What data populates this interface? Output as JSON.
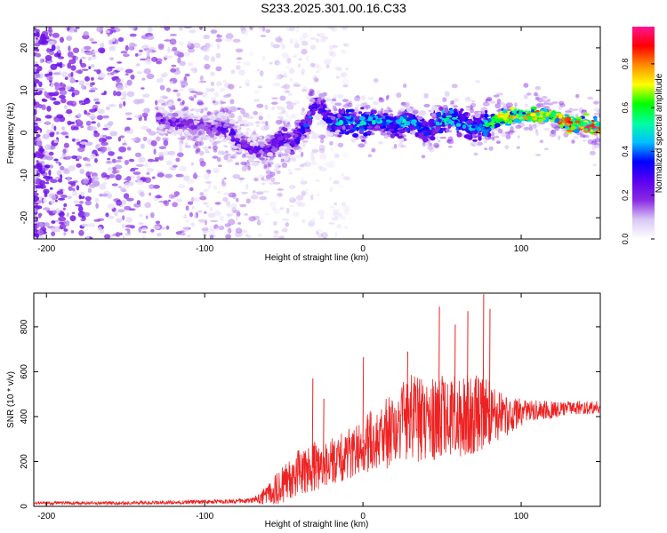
{
  "title": "S233.2025.301.00.16.C33",
  "colors": {
    "snr_line": "#ee2222",
    "axis": "#000000",
    "background": "#ffffff",
    "colorbar_stops": [
      "#ffffff",
      "#d9c9f5",
      "#8a2be2",
      "#5a00f0",
      "#0000ff",
      "#00bfff",
      "#00ffa0",
      "#00ff00",
      "#ffff00",
      "#ff8c00",
      "#ff0000",
      "#ff1493"
    ]
  },
  "chart_data": [
    {
      "type": "heatmap",
      "title": "S233.2025.301.00.16.C33",
      "xlabel": "Height of straight line (km)",
      "ylabel": "Frequency (Hz)",
      "xlim": [
        -208,
        150
      ],
      "ylim": [
        -25,
        25
      ],
      "x_ticks": [
        -200,
        -100,
        0,
        100
      ],
      "x_tick_labels": [
        "-200",
        "-100",
        "0",
        "100"
      ],
      "y_ticks": [
        -20,
        -10,
        0,
        10,
        20
      ],
      "y_tick_labels": [
        "-20",
        "-10",
        "0",
        "10",
        "20"
      ],
      "colorbar": {
        "label": "Normalized spectral amplitude",
        "range": [
          0,
          0.97
        ],
        "ticks": [
          0,
          0.2,
          0.4,
          0.6,
          0.8
        ],
        "tick_labels": [
          "0.0",
          "0.2",
          "0.4",
          "0.6",
          "0.8"
        ]
      },
      "ridge": {
        "x": [
          -130,
          -110,
          -95,
          -85,
          -80,
          -70,
          -60,
          -50,
          -45,
          -40,
          -35,
          -30,
          -25,
          -20,
          -10,
          0,
          10,
          20,
          30,
          40,
          45,
          50,
          60,
          70,
          80,
          90,
          100,
          110,
          120,
          130,
          140,
          150
        ],
        "frequency": [
          3,
          2,
          1,
          1,
          -2,
          -4,
          -4,
          -1,
          -3,
          0,
          2,
          7,
          5,
          2,
          3,
          2,
          3,
          2,
          3,
          0,
          2,
          3,
          3,
          1,
          2,
          4,
          4,
          4,
          4,
          2,
          2,
          1
        ],
        "amplitude": [
          0.25,
          0.25,
          0.25,
          0.3,
          0.3,
          0.25,
          0.3,
          0.35,
          0.3,
          0.35,
          0.4,
          0.35,
          0.35,
          0.45,
          0.5,
          0.5,
          0.45,
          0.45,
          0.5,
          0.4,
          0.45,
          0.55,
          0.5,
          0.45,
          0.55,
          0.75,
          0.7,
          0.8,
          0.75,
          0.85,
          0.9,
          0.95
        ]
      },
      "noise_region_x": [
        -208,
        -70
      ]
    },
    {
      "type": "line",
      "xlabel": "Height of straight line (km)",
      "ylabel": "SNR (10 * v/v)",
      "xlim": [
        -208,
        150
      ],
      "ylim": [
        0,
        950
      ],
      "x_ticks": [
        -200,
        -100,
        0,
        100
      ],
      "x_tick_labels": [
        "-200",
        "-100",
        "0",
        "100"
      ],
      "y_ticks": [
        0,
        200,
        400,
        600,
        800
      ],
      "y_tick_labels": [
        "0",
        "200",
        "400",
        "600",
        "800"
      ],
      "envelope": {
        "x": [
          -208,
          -150,
          -100,
          -70,
          -60,
          -50,
          -40,
          -30,
          -20,
          -10,
          0,
          10,
          20,
          30,
          40,
          50,
          60,
          70,
          80,
          90,
          100,
          110,
          120,
          130,
          140,
          150
        ],
        "mean": [
          15,
          15,
          20,
          25,
          50,
          100,
          150,
          180,
          200,
          230,
          280,
          300,
          350,
          400,
          380,
          420,
          400,
          410,
          420,
          400,
          420,
          430,
          430,
          440,
          440,
          440
        ],
        "spread": [
          10,
          10,
          12,
          15,
          60,
          120,
          150,
          150,
          140,
          150,
          180,
          200,
          220,
          250,
          260,
          260,
          250,
          240,
          200,
          120,
          80,
          60,
          50,
          40,
          40,
          40
        ]
      },
      "peaks": [
        {
          "x": -32,
          "y": 570
        },
        {
          "x": -25,
          "y": 480
        },
        {
          "x": 0,
          "y": 665
        },
        {
          "x": 28,
          "y": 690
        },
        {
          "x": 48,
          "y": 890
        },
        {
          "x": 58,
          "y": 810
        },
        {
          "x": 66,
          "y": 870
        },
        {
          "x": 76,
          "y": 945
        },
        {
          "x": 80,
          "y": 880
        }
      ]
    }
  ]
}
